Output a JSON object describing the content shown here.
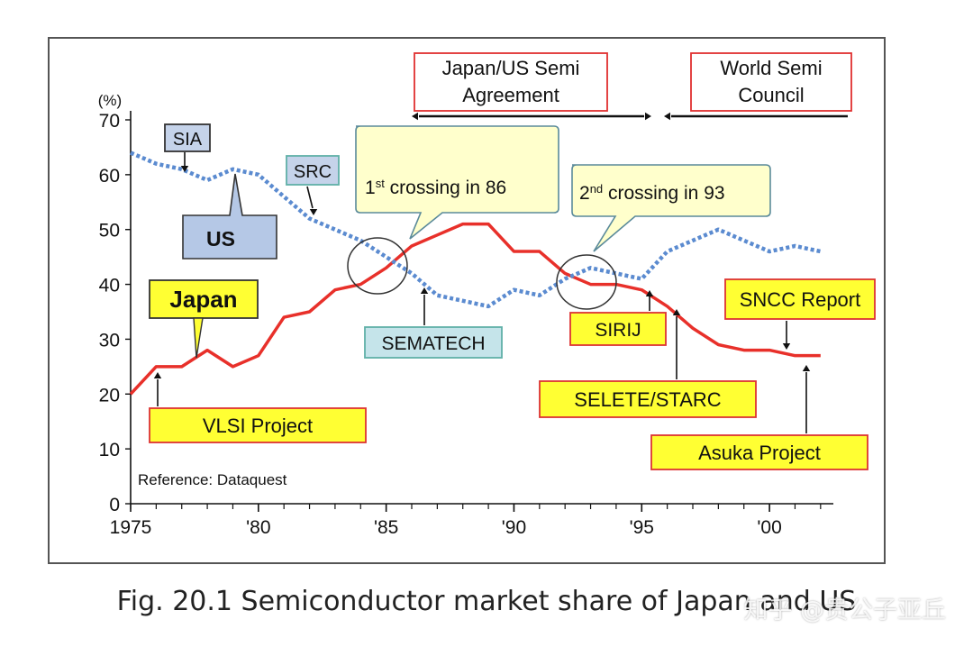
{
  "chart_data": {
    "type": "line",
    "ylabel": "(%)",
    "ylim": [
      0,
      70
    ],
    "y_ticks": [
      0,
      10,
      20,
      30,
      40,
      50,
      60,
      70
    ],
    "xlim": [
      1975,
      2002.5
    ],
    "x_ticks": [
      {
        "value": 1975,
        "label": "1975"
      },
      {
        "value": 1980,
        "label": "'80"
      },
      {
        "value": 1985,
        "label": "'85"
      },
      {
        "value": 1990,
        "label": "'90"
      },
      {
        "value": 1995,
        "label": "'95"
      },
      {
        "value": 2000,
        "label": "'00"
      }
    ],
    "series": [
      {
        "name": "Japan",
        "color": "#e8302a",
        "style": "solid",
        "x": [
          1975,
          1976,
          1977,
          1978,
          1979,
          1980,
          1981,
          1982,
          1983,
          1984,
          1985,
          1986,
          1987,
          1988,
          1989,
          1990,
          1991,
          1992,
          1993,
          1994,
          1995,
          1996,
          1997,
          1998,
          1999,
          2000,
          2001,
          2002
        ],
        "values": [
          20,
          25,
          25,
          28,
          25,
          27,
          34,
          35,
          39,
          40,
          43,
          47,
          49,
          51,
          51,
          46,
          46,
          42,
          40,
          40,
          39,
          36,
          32,
          29,
          28,
          28,
          27,
          27
        ]
      },
      {
        "name": "US",
        "color": "#5b8bd0",
        "style": "dotted",
        "x": [
          1975,
          1976,
          1977,
          1978,
          1979,
          1980,
          1981,
          1982,
          1983,
          1984,
          1985,
          1986,
          1987,
          1988,
          1989,
          1990,
          1991,
          1992,
          1993,
          1994,
          1995,
          1996,
          1997,
          1998,
          1999,
          2000,
          2001,
          2002
        ],
        "values": [
          64,
          62,
          61,
          59,
          61,
          60,
          56,
          52,
          50,
          48,
          45,
          42,
          38,
          37,
          36,
          39,
          38,
          41,
          43,
          42,
          41,
          46,
          48,
          50,
          48,
          46,
          47,
          46
        ]
      }
    ],
    "annotations": {
      "reference": "Reference: Dataquest",
      "japan_label": "Japan",
      "us_label": "US",
      "sia": "SIA",
      "src": "SRC",
      "sematech": "SEMATECH",
      "vlsi": "VLSI Project",
      "sirij": "SIRIJ",
      "selete": "SELETE/STARC",
      "sncc": "SNCC Report",
      "asuka": "Asuka Project",
      "agreement_line1": "Japan/US Semi",
      "agreement_line2": "Agreement",
      "council_line1": "World Semi",
      "council_line2": "Council",
      "crossing1_pre": "1",
      "crossing1_sup": "st",
      "crossing1_post": " crossing in 86",
      "crossing2_pre": "2",
      "crossing2_sup": "nd",
      "crossing2_post": " crossing in 93"
    }
  },
  "caption": "Fig. 20.1 Semiconductor market share of Japan and US",
  "watermark": "知乎 @贵公子亚丘"
}
